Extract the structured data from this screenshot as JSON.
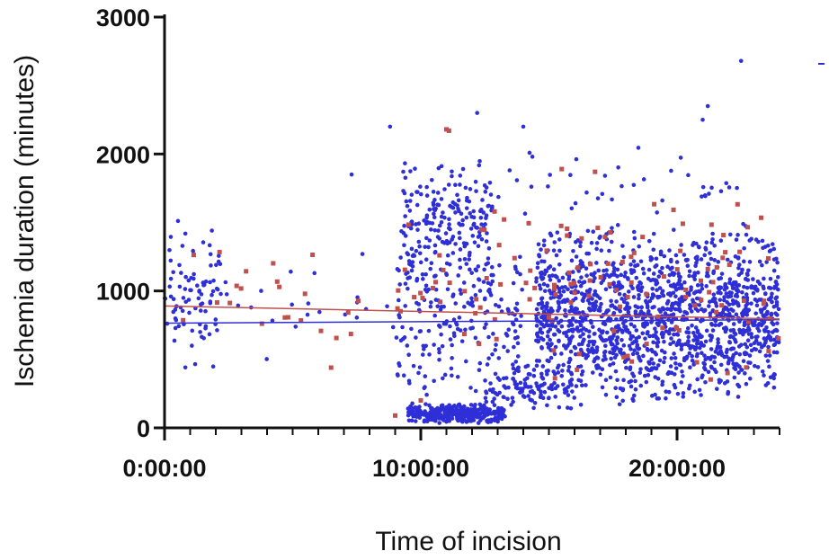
{
  "chart_data": {
    "type": "scatter",
    "title": "",
    "xlabel": "Time of incision",
    "ylabel": "Ischemia duration (minutes)",
    "xlim": [
      0,
      24
    ],
    "ylim": [
      0,
      3000
    ],
    "x_unit": "hours",
    "x_ticks": [
      {
        "value": 0,
        "label": "0:00:00"
      },
      {
        "value": 10,
        "label": "10:00:00"
      },
      {
        "value": 20,
        "label": "20:00:00"
      }
    ],
    "x_minor_ticks": [
      1,
      2,
      3,
      4,
      5,
      6,
      7,
      8,
      9,
      11,
      12,
      13,
      14,
      15,
      16,
      17,
      18,
      19,
      21,
      22,
      23,
      24
    ],
    "y_ticks": [
      {
        "value": 0,
        "label": "0"
      },
      {
        "value": 1000,
        "label": "1000"
      },
      {
        "value": 2000,
        "label": "2000"
      },
      {
        "value": 3000,
        "label": "3000"
      }
    ],
    "grid": false,
    "legend": "none",
    "series": [
      {
        "color": "#2f2fd8",
        "clusters": [
          {
            "x": [
              0,
              2.2
            ],
            "y": [
              400,
              1550
            ],
            "n": 90
          },
          {
            "x": [
              2.2,
              9
            ],
            "y": [
              450,
              1400
            ],
            "n": 22
          },
          {
            "x": [
              9.2,
              12.8
            ],
            "y": [
              900,
              2000
            ],
            "n": 230
          },
          {
            "x": [
              9.5,
              13.3
            ],
            "y": [
              30,
              180
            ],
            "n": 330
          },
          {
            "x": [
              9,
              14
            ],
            "y": [
              200,
              1300
            ],
            "n": 180
          },
          {
            "x": [
              12.5,
              16
            ],
            "y": [
              100,
              500
            ],
            "n": 110
          },
          {
            "x": [
              14.5,
              24
            ],
            "y": [
              150,
              1500
            ],
            "n": 1500
          },
          {
            "x": [
              13,
              23
            ],
            "y": [
              1400,
              2100
            ],
            "n": 40
          }
        ],
        "outliers": [
          {
            "x": 22.5,
            "y": 2680
          },
          {
            "x": 21.2,
            "y": 2350
          },
          {
            "x": 21,
            "y": 2250
          },
          {
            "x": 12.2,
            "y": 2300
          },
          {
            "x": 14,
            "y": 2200
          },
          {
            "x": 8.8,
            "y": 2200
          },
          {
            "x": 7.3,
            "y": 1850
          }
        ],
        "trend": {
          "x": [
            0,
            24
          ],
          "y": [
            765,
            790
          ]
        }
      },
      {
        "color": "#c0504d",
        "clusters": [
          {
            "x": [
              0,
              8
            ],
            "y": [
              450,
              1500
            ],
            "n": 22
          },
          {
            "x": [
              9,
              14
            ],
            "y": [
              400,
              1800
            ],
            "n": 30
          },
          {
            "x": [
              14,
              24
            ],
            "y": [
              300,
              1800
            ],
            "n": 90
          }
        ],
        "outliers": [
          {
            "x": 11.1,
            "y": 2170
          },
          {
            "x": 11,
            "y": 2180
          },
          {
            "x": 6.5,
            "y": 440
          },
          {
            "x": 9,
            "y": 90
          },
          {
            "x": 10,
            "y": 200
          },
          {
            "x": 15.5,
            "y": 1890
          },
          {
            "x": 16.8,
            "y": 1870
          }
        ],
        "trend": {
          "x": [
            0,
            24
          ],
          "y": [
            890,
            795
          ]
        }
      }
    ]
  }
}
